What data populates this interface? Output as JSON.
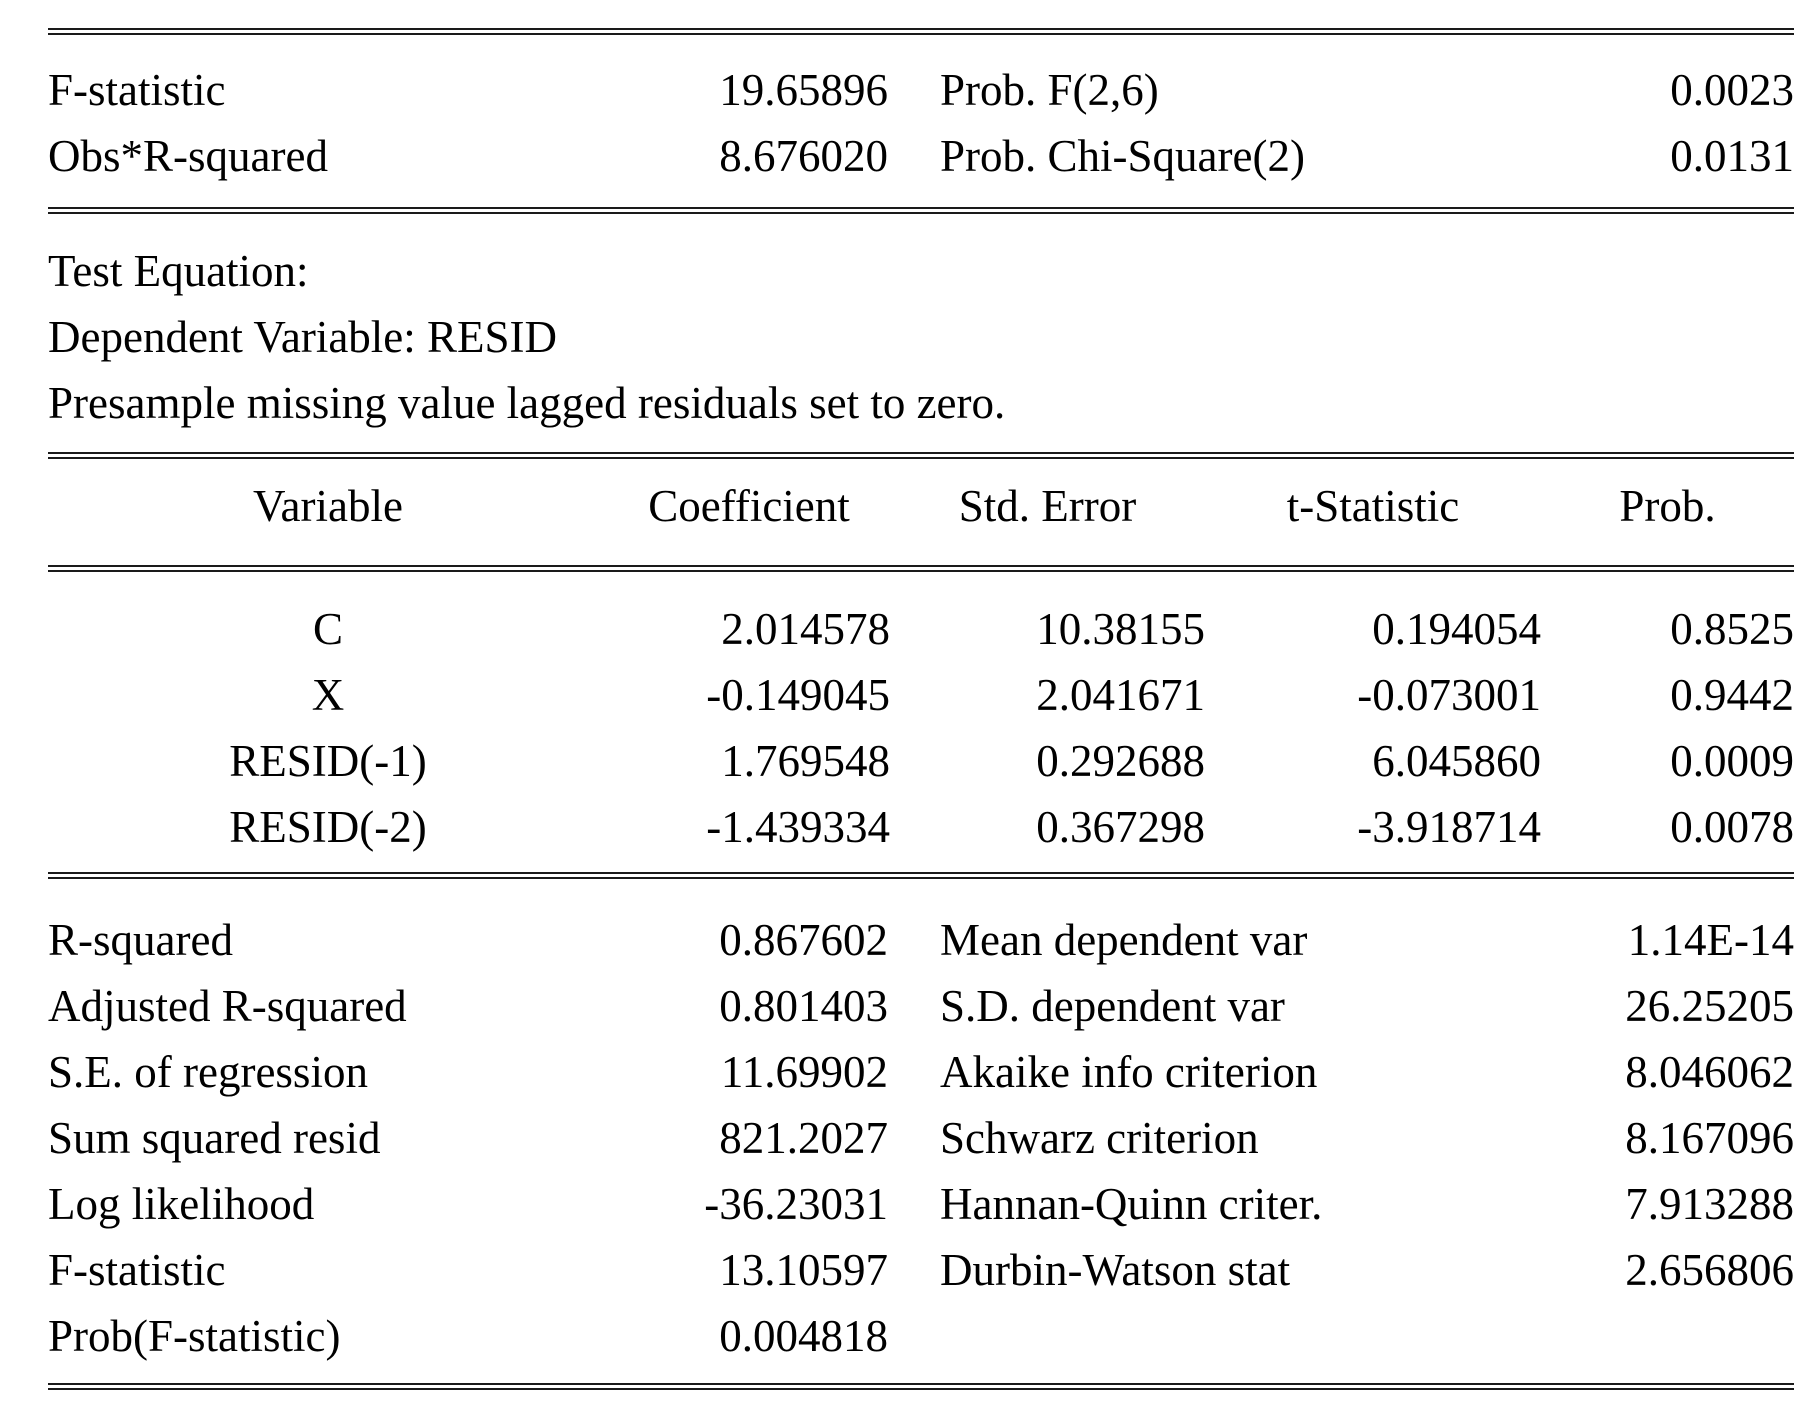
{
  "colors": {
    "background": "#ffffff",
    "text": "#000000",
    "rule": "#1a1a1a"
  },
  "lm_test_summary": {
    "rows": [
      {
        "label": "F-statistic",
        "value": "19.65896",
        "label2": "Prob. F(2,6)",
        "value2": "0.0023"
      },
      {
        "label": "Obs*R-squared",
        "value": "8.676020",
        "label2": "Prob. Chi-Square(2)",
        "value2": "0.0131"
      }
    ]
  },
  "test_equation": {
    "line1": "Test Equation:",
    "line2": "Dependent Variable: RESID",
    "line3": "Presample missing value lagged residuals set to zero."
  },
  "coefficient_table": {
    "headers": {
      "variable": "Variable",
      "coefficient": "Coefficient",
      "std_error": "Std. Error",
      "t_statistic": "t-Statistic",
      "prob": "Prob."
    },
    "rows": [
      {
        "variable": "C",
        "coefficient": "2.014578",
        "std_error": "10.38155",
        "t_statistic": "0.194054",
        "prob": "0.8525"
      },
      {
        "variable": "X",
        "coefficient": "-0.149045",
        "std_error": "2.041671",
        "t_statistic": "-0.073001",
        "prob": "0.9442"
      },
      {
        "variable": "RESID(-1)",
        "coefficient": "1.769548",
        "std_error": "0.292688",
        "t_statistic": "6.045860",
        "prob": "0.0009"
      },
      {
        "variable": "RESID(-2)",
        "coefficient": "-1.439334",
        "std_error": "0.367298",
        "t_statistic": "-3.918714",
        "prob": "0.0078"
      }
    ]
  },
  "regression_stats": {
    "rows": [
      {
        "label": "R-squared",
        "value": "0.867602",
        "label2": "Mean dependent var",
        "value2": "1.14E-14"
      },
      {
        "label": "Adjusted R-squared",
        "value": "0.801403",
        "label2": "S.D. dependent var",
        "value2": "26.25205"
      },
      {
        "label": "S.E. of regression",
        "value": "11.69902",
        "label2": "Akaike info criterion",
        "value2": "8.046062"
      },
      {
        "label": "Sum squared resid",
        "value": "821.2027",
        "label2": "Schwarz criterion",
        "value2": "8.167096"
      },
      {
        "label": "Log likelihood",
        "value": "-36.23031",
        "label2": "Hannan-Quinn criter.",
        "value2": "7.913288"
      },
      {
        "label": "F-statistic",
        "value": "13.10597",
        "label2": "Durbin-Watson stat",
        "value2": "2.656806"
      },
      {
        "label": "Prob(F-statistic)",
        "value": "0.004818",
        "label2": "",
        "value2": ""
      }
    ]
  }
}
